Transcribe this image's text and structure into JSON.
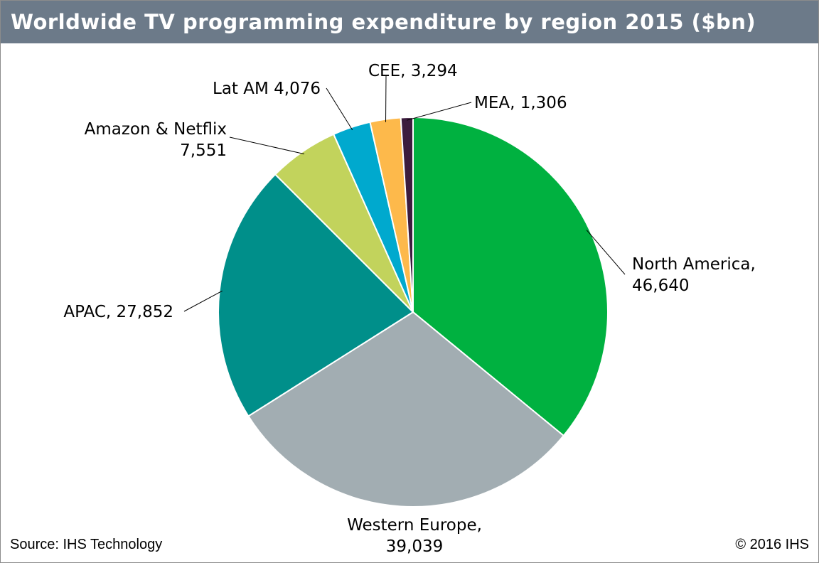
{
  "header": {
    "title": "Worldwide TV programming expenditure by region 2015 ($bn)"
  },
  "footer": {
    "source": "Source: IHS Technology",
    "copyright": "© 2016 IHS"
  },
  "chart_data": {
    "type": "pie",
    "title": "Worldwide TV programming expenditure by region 2015 ($bn)",
    "start_angle": "12 o'clock",
    "direction": "clockwise",
    "slices": [
      {
        "name": "North America",
        "value": 46640,
        "color": "#00b140",
        "label_lines": [
          "North America,",
          "46,640"
        ]
      },
      {
        "name": "Western Europe",
        "value": 39039,
        "color": "#a2adb2",
        "label_lines": [
          "Western Europe,",
          "39,039"
        ]
      },
      {
        "name": "APAC",
        "value": 27852,
        "color": "#008f8a",
        "label_lines": [
          "APAC, 27,852"
        ]
      },
      {
        "name": "Amazon & Netflix",
        "value": 7551,
        "color": "#c2d35c",
        "label_lines": [
          "Amazon & Netflix",
          "7,551"
        ]
      },
      {
        "name": "Lat AM",
        "value": 4076,
        "color": "#00a9ce",
        "label_lines": [
          "Lat AM 4,076"
        ]
      },
      {
        "name": "CEE",
        "value": 3294,
        "color": "#fdb94b",
        "label_lines": [
          "CEE, 3,294"
        ]
      },
      {
        "name": "MEA",
        "value": 1306,
        "color": "#3c1c3e",
        "label_lines": [
          "MEA, 1,306"
        ]
      }
    ]
  }
}
